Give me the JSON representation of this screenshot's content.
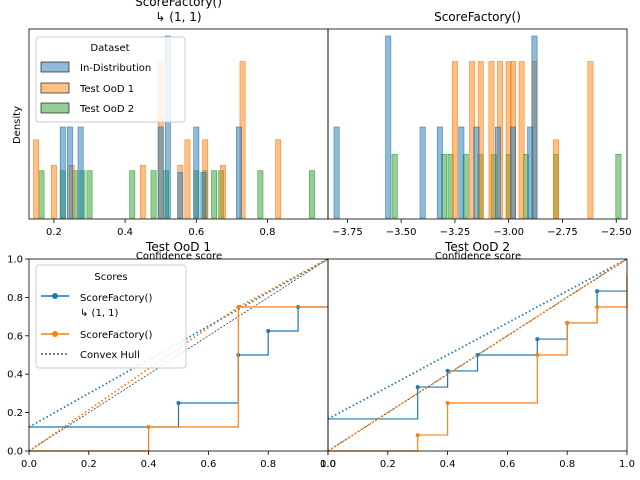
{
  "figure": {
    "hist_ylabel": "Density",
    "hist_xlabel": "Confidence score",
    "legend1": {
      "title": "Dataset",
      "entries": [
        {
          "label": "In-Distribution",
          "color": "#1f77b4"
        },
        {
          "label": "Test OoD 1",
          "color": "#ff7f0e"
        },
        {
          "label": "Test OoD 2",
          "color": "#2ca02c"
        }
      ]
    },
    "legend2": {
      "title": "Scores",
      "entries": [
        {
          "label_line1": "ScoreFactory()",
          "label_line2": "↳ (1, 1)",
          "color": "#1f77b4",
          "style": "line-marker"
        },
        {
          "label_line1": "ScoreFactory()",
          "label_line2": "",
          "color": "#ff7f0e",
          "style": "line-marker"
        },
        {
          "label_line1": "Convex Hull",
          "label_line2": "",
          "color": "#7f7f7f",
          "style": "dotted"
        }
      ]
    }
  },
  "chart_data": [
    {
      "type": "bar",
      "title": "ScoreFactory()\n↳ (1, 1)",
      "xlabel": "Confidence score",
      "ylabel": "Density",
      "xlim": [
        0.13,
        0.97
      ],
      "xticks": [
        "0.2",
        "0.4",
        "0.6",
        "0.8"
      ],
      "xtick_values": [
        0.2,
        0.4,
        0.6,
        0.8
      ],
      "bin_width": 0.0147,
      "series": [
        {
          "name": "In-Distribution",
          "color": "#1f77b4",
          "bars": [
            [
              0.225,
              0.5
            ],
            [
              0.245,
              0.5
            ],
            [
              0.275,
              0.5
            ],
            [
              0.5,
              0.5
            ],
            [
              0.52,
              1.0
            ],
            [
              0.555,
              0.25
            ],
            [
              0.6,
              0.5
            ],
            [
              0.62,
              0.25
            ],
            [
              0.72,
              0.5
            ]
          ]
        },
        {
          "name": "Test OoD 1",
          "color": "#ff7f0e",
          "bars": [
            [
              0.15,
              0.43
            ],
            [
              0.2,
              0.29
            ],
            [
              0.25,
              0.29
            ],
            [
              0.45,
              0.29
            ],
            [
              0.5,
              0.86
            ],
            [
              0.555,
              0.29
            ],
            [
              0.575,
              0.43
            ],
            [
              0.625,
              0.43
            ],
            [
              0.675,
              0.29
            ],
            [
              0.73,
              0.86
            ],
            [
              0.83,
              0.43
            ]
          ]
        },
        {
          "name": "Test OoD 2",
          "color": "#2ca02c",
          "bars": [
            [
              0.165,
              0.26
            ],
            [
              0.225,
              0.26
            ],
            [
              0.26,
              0.26
            ],
            [
              0.28,
              0.26
            ],
            [
              0.3,
              0.26
            ],
            [
              0.42,
              0.26
            ],
            [
              0.48,
              0.26
            ],
            [
              0.515,
              0.26
            ],
            [
              0.6,
              0.26
            ],
            [
              0.625,
              0.26
            ],
            [
              0.65,
              0.26
            ],
            [
              0.67,
              0.26
            ],
            [
              0.78,
              0.26
            ],
            [
              0.925,
              0.26
            ]
          ]
        }
      ]
    },
    {
      "type": "bar",
      "title": "ScoreFactory()",
      "xlabel": "Confidence score",
      "ylabel": "",
      "xlim": [
        -3.84,
        -2.45
      ],
      "xticks": [
        "−3.75",
        "−3.50",
        "−3.25",
        "−3.00",
        "−2.75",
        "−2.50"
      ],
      "xtick_values": [
        -3.75,
        -3.5,
        -3.25,
        -3.0,
        -2.75,
        -2.5
      ],
      "bin_width": 0.0245,
      "series": [
        {
          "name": "In-Distribution",
          "color": "#1f77b4",
          "bars": [
            [
              -3.8,
              0.5
            ],
            [
              -3.56,
              1.0
            ],
            [
              -3.4,
              0.5
            ],
            [
              -3.32,
              0.5
            ],
            [
              -3.22,
              0.5
            ],
            [
              -3.15,
              0.5
            ],
            [
              -3.05,
              0.5
            ],
            [
              -2.98,
              0.5
            ],
            [
              -2.9,
              0.5
            ],
            [
              -2.88,
              1.0
            ]
          ]
        },
        {
          "name": "Test OoD 1",
          "color": "#ff7f0e",
          "bars": [
            [
              -3.25,
              0.86
            ],
            [
              -3.17,
              0.86
            ],
            [
              -3.13,
              0.86
            ],
            [
              -3.08,
              0.86
            ],
            [
              -3.04,
              0.86
            ],
            [
              -3.0,
              0.86
            ],
            [
              -2.98,
              0.86
            ],
            [
              -2.94,
              0.86
            ],
            [
              -2.88,
              0.86
            ],
            [
              -2.78,
              0.43
            ],
            [
              -2.62,
              0.86
            ]
          ]
        },
        {
          "name": "Test OoD 2",
          "color": "#2ca02c",
          "bars": [
            [
              -3.53,
              0.35
            ],
            [
              -3.3,
              0.35
            ],
            [
              -3.27,
              0.35
            ],
            [
              -3.2,
              0.35
            ],
            [
              -3.13,
              0.35
            ],
            [
              -3.07,
              0.35
            ],
            [
              -3.0,
              0.35
            ],
            [
              -2.92,
              0.35
            ],
            [
              -2.78,
              0.35
            ],
            [
              -2.49,
              0.35
            ]
          ]
        }
      ]
    },
    {
      "type": "line",
      "title": "Test OoD 1",
      "xlim": [
        0.0,
        1.0
      ],
      "ylim": [
        0.0,
        1.0
      ],
      "xticks": [
        "0.0",
        "0.2",
        "0.4",
        "0.6",
        "0.8",
        "1.0"
      ],
      "yticks": [
        "0.0",
        "0.2",
        "0.4",
        "0.6",
        "0.8",
        "1.0"
      ],
      "grid": false,
      "diagonal": true,
      "series": [
        {
          "name": "ScoreFactory()\n↳ (1, 1)",
          "color": "#1f77b4",
          "x": [
            0.0,
            0.5,
            0.7,
            0.8,
            0.9,
            1.0
          ],
          "y": [
            0.125,
            0.25,
            0.5,
            0.625,
            0.75,
            0.75
          ],
          "hull": [
            [
              0.0,
              0.125
            ],
            [
              1.0,
              1.0
            ]
          ]
        },
        {
          "name": "ScoreFactory()",
          "color": "#ff7f0e",
          "x": [
            0.0,
            0.4,
            0.7,
            1.0
          ],
          "y": [
            0.0,
            0.125,
            0.75,
            0.75
          ],
          "hull": [
            [
              0.0,
              0.0
            ],
            [
              0.7,
              0.75
            ],
            [
              1.0,
              1.0
            ]
          ]
        }
      ]
    },
    {
      "type": "line",
      "title": "Test OoD 2",
      "xlim": [
        0.0,
        1.0
      ],
      "ylim": [
        0.0,
        1.0
      ],
      "xticks": [
        "0.0",
        "0.2",
        "0.4",
        "0.6",
        "0.8",
        "1.0"
      ],
      "yticks": [],
      "grid": false,
      "diagonal": true,
      "series": [
        {
          "name": "ScoreFactory()\n↳ (1, 1)",
          "color": "#1f77b4",
          "x": [
            0.0,
            0.3,
            0.4,
            0.5,
            0.7,
            0.8,
            0.9,
            1.0
          ],
          "y": [
            0.167,
            0.333,
            0.417,
            0.5,
            0.583,
            0.667,
            0.833,
            0.833
          ],
          "hull": [
            [
              0.0,
              0.167
            ],
            [
              1.0,
              1.0
            ]
          ]
        },
        {
          "name": "ScoreFactory()",
          "color": "#ff7f0e",
          "x": [
            0.0,
            0.3,
            0.4,
            0.7,
            0.8,
            0.9,
            1.0
          ],
          "y": [
            0.0,
            0.083,
            0.25,
            0.5,
            0.667,
            0.75,
            0.917
          ],
          "hull": [
            [
              0.0,
              0.0
            ],
            [
              1.0,
              1.0
            ]
          ]
        }
      ]
    }
  ]
}
